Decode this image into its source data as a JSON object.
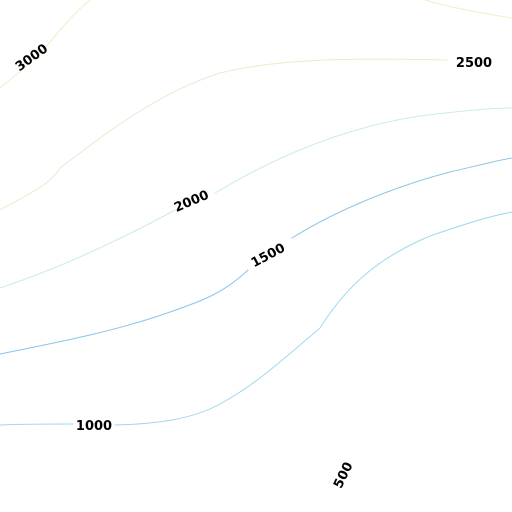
{
  "contours": [
    {
      "id": "c3000",
      "label": "3000",
      "color": "#e7f2c9"
    },
    {
      "id": "c2500",
      "label": "2500",
      "color": "#def1cf"
    },
    {
      "id": "c2000",
      "label": "2000",
      "color": "#c7ecea"
    },
    {
      "id": "c1500",
      "label": "1500",
      "color": "#8cc4ea"
    },
    {
      "id": "c1000",
      "label": "1000",
      "color": "#9fd9ee"
    },
    {
      "id": "c500",
      "label": "500",
      "color": "#9fd9ee"
    }
  ],
  "labels": {
    "l3000": "3000",
    "l2500": "2500",
    "l2000": "2000",
    "l1500": "1500",
    "l1000": "1000",
    "l500": "500"
  }
}
